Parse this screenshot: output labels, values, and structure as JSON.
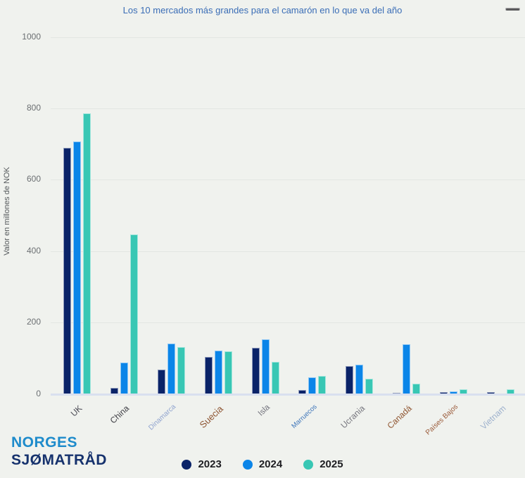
{
  "header": {
    "title": "Los 10 mercados más grandes para el camarón en lo que va del año",
    "menu_icon": "hamburger-menu"
  },
  "chart_data": {
    "type": "bar",
    "title": "Los 10 mercados más grandes para el camarón en lo que va del año",
    "xlabel": "",
    "ylabel": "Valor en millones de NOK",
    "ylim": [
      0,
      1000
    ],
    "yticks": [
      0,
      200,
      400,
      600,
      800,
      1000
    ],
    "grid": true,
    "legend_position": "bottom",
    "categories": [
      "UK",
      "China",
      "Dinamarca",
      "Suecia",
      "Isla",
      "Marruecos",
      "Ucrania",
      "Canadá",
      "Países Bajos",
      "Vietnam"
    ],
    "category_label_colors": [
      "#4b4b55",
      "#3e3e44",
      "#8fa3cf",
      "#8d5431",
      "#73737d",
      "#3c74b9",
      "#77777f",
      "#8f5530",
      "#9a5a39",
      "#9db1cd"
    ],
    "category_label_sizes": [
      12,
      12,
      10,
      13,
      11.5,
      9.5,
      12,
      12,
      10,
      12
    ],
    "series": [
      {
        "name": "2023",
        "color": "#0a2368",
        "values": [
          690,
          16,
          69,
          103,
          130,
          11,
          77,
          3,
          5,
          5
        ]
      },
      {
        "name": "2024",
        "color": "#0b85e8",
        "values": [
          708,
          88,
          142,
          122,
          153,
          46,
          82,
          140,
          6,
          0
        ]
      },
      {
        "name": "2025",
        "color": "#38c7b4",
        "values": [
          786,
          447,
          132,
          120,
          90,
          51,
          42,
          28,
          13,
          12
        ]
      }
    ]
  },
  "logo": {
    "line1": "NORGES",
    "line2": "SJØMATRÅD"
  }
}
